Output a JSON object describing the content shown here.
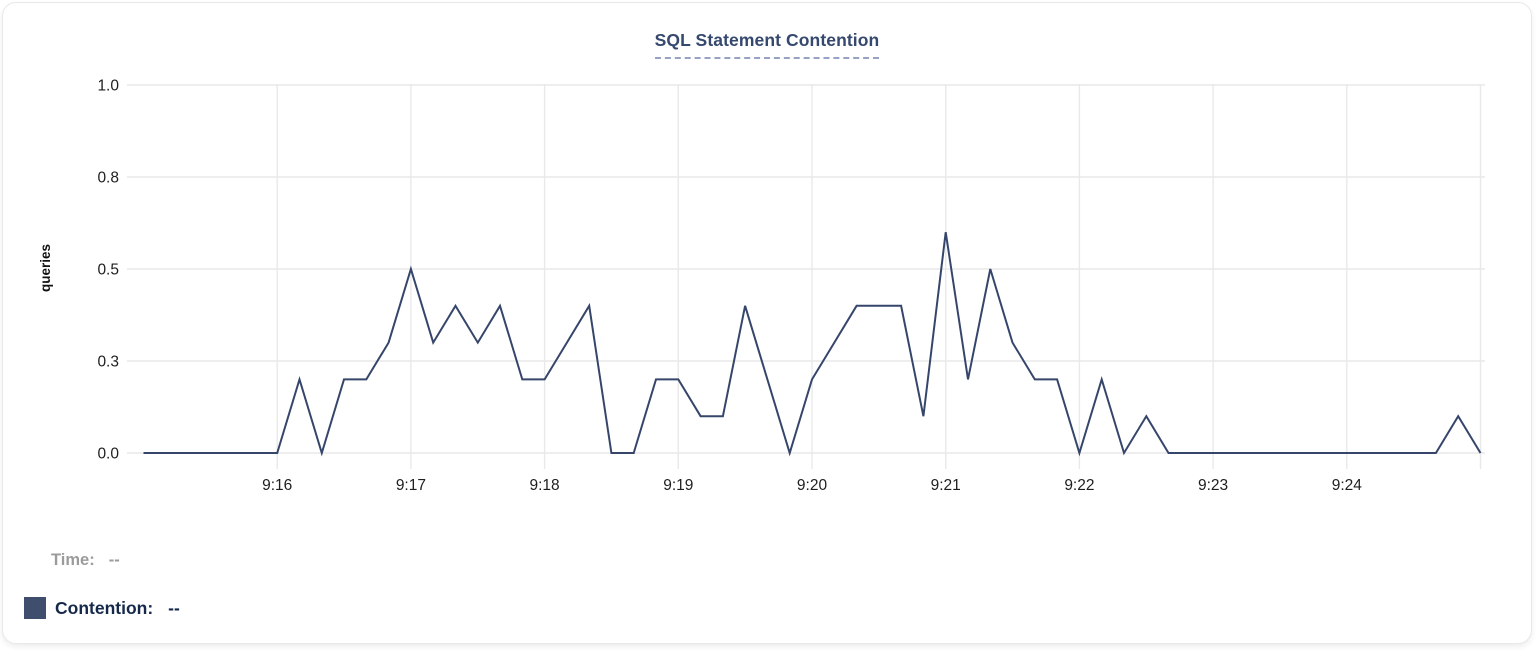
{
  "chart_data": {
    "type": "line",
    "title": "SQL Statement Contention",
    "ylabel": "queries",
    "xlabel": "",
    "ylim": [
      0,
      1
    ],
    "grid": true,
    "legend_position": "bottom-left",
    "x_start_time": "9:15:00",
    "x_end_time": "9:25:00",
    "sample_interval_seconds": 10,
    "x_tick_labels": [
      "9:16",
      "9:17",
      "9:18",
      "9:19",
      "9:20",
      "9:21",
      "9:22",
      "9:23",
      "9:24"
    ],
    "y_ticks": [
      {
        "value": 0,
        "label": "0.0"
      },
      {
        "value": 0.25,
        "label": "0.3"
      },
      {
        "value": 0.5,
        "label": "0.5"
      },
      {
        "value": 0.75,
        "label": "0.8"
      },
      {
        "value": 1,
        "label": "1.0"
      }
    ],
    "series": [
      {
        "name": "Contention",
        "color": "#36466b",
        "values": [
          0,
          0,
          0,
          0,
          0,
          0,
          0,
          0.2,
          0,
          0.2,
          0.2,
          0.3,
          0.5,
          0.3,
          0.4,
          0.3,
          0.4,
          0.2,
          0.2,
          0.3,
          0.4,
          0,
          0,
          0.2,
          0.2,
          0.1,
          0.1,
          0.4,
          0.2,
          0,
          0.2,
          0.3,
          0.4,
          0.4,
          0.4,
          0.1,
          0.6,
          0.2,
          0.5,
          0.3,
          0.2,
          0.2,
          0,
          0.2,
          0,
          0.1,
          0,
          0,
          0,
          0,
          0,
          0,
          0,
          0,
          0,
          0,
          0,
          0,
          0,
          0.1,
          0
        ]
      }
    ]
  },
  "legend": {
    "time_label": "Time:",
    "time_value": "--",
    "series_label": "Contention:",
    "series_value": "--",
    "swatch_color": "#3e4e6c"
  },
  "colors": {
    "line": "#36466b",
    "gridline": "#e9e9e9",
    "title_text": "#35486d",
    "title_underline": "#98a2c4",
    "legend_muted": "#9b9b9b",
    "legend_strong": "#16294b",
    "card_border": "#e8e8e8"
  }
}
